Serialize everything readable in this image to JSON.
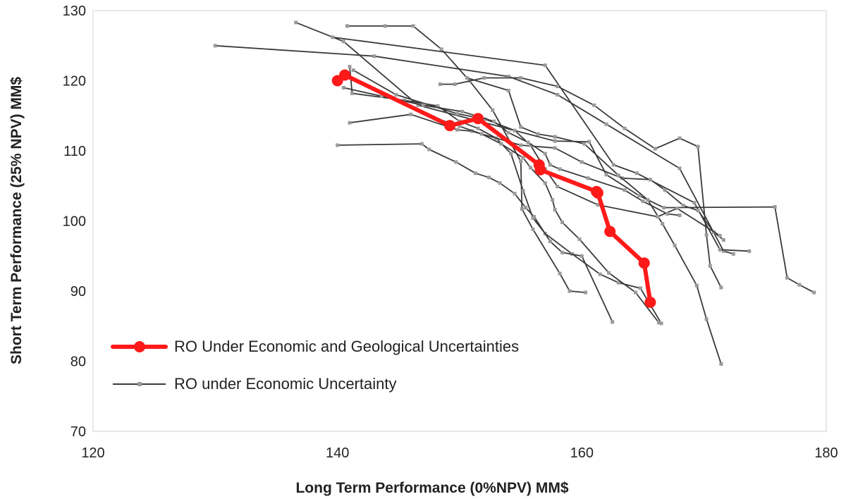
{
  "chart_data": {
    "type": "scatter",
    "title": "",
    "xlabel": "Long Term Performance (0%NPV) MM$",
    "ylabel": "Short Term Performance (25% NPV) MM$",
    "xlim": [
      120,
      180
    ],
    "ylim": [
      70,
      130
    ],
    "xticks": [
      120,
      140,
      160,
      180
    ],
    "yticks": [
      70,
      80,
      90,
      100,
      110,
      120,
      130
    ],
    "grid": false,
    "legend_position": "bottom-left",
    "series": [
      {
        "name": "RO Under Economic and Geological Uncertainties",
        "color": "#ff1a1a",
        "marker": "circle",
        "points": [
          [
            140.0,
            120.0
          ],
          [
            140.6,
            120.8
          ],
          [
            149.2,
            113.6
          ],
          [
            151.5,
            114.6
          ],
          [
            156.5,
            108.0
          ],
          [
            156.6,
            107.3
          ],
          [
            161.2,
            104.2
          ],
          [
            161.3,
            104.0
          ],
          [
            162.3,
            98.5
          ],
          [
            165.1,
            94.0
          ],
          [
            165.6,
            88.4
          ]
        ]
      },
      {
        "name": "RO under Economic Uncertainty",
        "color": "#3a3a3a",
        "marker": "square",
        "lines": [
          [
            [
              130.0,
              125.0
            ],
            [
              143.0,
              123.5
            ],
            [
              154.0,
              120.6
            ],
            [
              158.0,
              118.0
            ],
            [
              162.0,
              113.8
            ],
            [
              168.0,
              107.5
            ],
            [
              171.6,
              95.7
            ],
            [
              172.4,
              95.3
            ]
          ],
          [
            [
              136.6,
              128.3
            ],
            [
              140.5,
              125.6
            ],
            [
              146.6,
              116.5
            ],
            [
              157.8,
              111.4
            ],
            [
              160.6,
              111.3
            ],
            [
              162.0,
              106.6
            ],
            [
              164.7,
              103.6
            ],
            [
              166.7,
              101.9
            ],
            [
              175.8,
              102.0
            ],
            [
              176.8,
              91.9
            ],
            [
              177.8,
              90.9
            ],
            [
              179.0,
              89.8
            ]
          ],
          [
            [
              139.6,
              126.2
            ],
            [
              157.0,
              122.2
            ],
            [
              162.6,
              108.0
            ],
            [
              164.5,
              106.8
            ],
            [
              169.2,
              102.6
            ],
            [
              171.3,
              95.9
            ],
            [
              173.7,
              95.7
            ]
          ],
          [
            [
              140.8,
              127.8
            ],
            [
              143.9,
              127.8
            ],
            [
              146.2,
              127.8
            ],
            [
              148.5,
              124.5
            ],
            [
              150.8,
              120.0
            ],
            [
              152.7,
              115.8
            ],
            [
              155.0,
              108.5
            ],
            [
              155.1,
              101.7
            ],
            [
              156.0,
              98.8
            ],
            [
              158.2,
              92.5
            ],
            [
              159.0,
              90.0
            ],
            [
              160.3,
              89.8
            ]
          ],
          [
            [
              141.0,
              122.0
            ],
            [
              141.2,
              118.2
            ],
            [
              145.5,
              117.2
            ],
            [
              148.2,
              116.4
            ],
            [
              150.0,
              114.2
            ],
            [
              151.5,
              113.2
            ],
            [
              153.0,
              111.8
            ],
            [
              154.2,
              109.6
            ],
            [
              155.2,
              104.3
            ],
            [
              156.0,
              100.4
            ],
            [
              157.0,
              98.2
            ],
            [
              159.2,
              95.3
            ],
            [
              161.5,
              92.4
            ],
            [
              163.0,
              91.2
            ],
            [
              164.8,
              90.4
            ],
            [
              166.5,
              85.4
            ]
          ],
          [
            [
              141.0,
              114.0
            ],
            [
              146.0,
              115.2
            ],
            [
              149.8,
              113.0
            ],
            [
              151.0,
              112.8
            ],
            [
              155.0,
              110.8
            ],
            [
              157.8,
              110.4
            ],
            [
              160.0,
              108.4
            ],
            [
              163.3,
              106.1
            ],
            [
              165.6,
              105.9
            ],
            [
              166.8,
              104.4
            ],
            [
              168.3,
              102.2
            ],
            [
              169.5,
              101.5
            ],
            [
              170.8,
              98.4
            ],
            [
              171.6,
              97.3
            ]
          ],
          [
            [
              140.0,
              110.8
            ],
            [
              146.9,
              111.0
            ],
            [
              147.5,
              110.2
            ],
            [
              149.7,
              108.4
            ],
            [
              151.3,
              106.8
            ],
            [
              152.4,
              106.2
            ],
            [
              153.3,
              105.4
            ],
            [
              154.5,
              103.9
            ],
            [
              155.4,
              101.9
            ],
            [
              156.1,
              100.6
            ],
            [
              157.4,
              97.1
            ],
            [
              158.4,
              95.5
            ],
            [
              160.0,
              95.0
            ],
            [
              162.5,
              85.6
            ]
          ],
          [
            [
              150.6,
              120.4
            ],
            [
              154.0,
              118.6
            ],
            [
              155.0,
              113.4
            ],
            [
              156.4,
              112.4
            ],
            [
              157.8,
              112.0
            ],
            [
              160.2,
              111.0
            ],
            [
              163.0,
              106.5
            ],
            [
              165.4,
              103.0
            ],
            [
              166.6,
              99.6
            ],
            [
              167.6,
              96.5
            ],
            [
              169.4,
              90.8
            ],
            [
              170.2,
              86.0
            ],
            [
              171.4,
              79.6
            ]
          ],
          [
            [
              148.4,
              119.5
            ],
            [
              149.6,
              119.5
            ],
            [
              152.0,
              120.4
            ],
            [
              155.0,
              120.4
            ],
            [
              158.0,
              119.2
            ],
            [
              161.0,
              116.5
            ],
            [
              163.5,
              113.2
            ],
            [
              166.0,
              110.3
            ],
            [
              168.0,
              111.8
            ],
            [
              169.5,
              110.6
            ],
            [
              170.2,
              98.0
            ],
            [
              170.5,
              93.6
            ],
            [
              171.4,
              90.5
            ]
          ],
          [
            [
              141.3,
              121.5
            ],
            [
              144.8,
              118.0
            ],
            [
              149.8,
              115.3
            ],
            [
              152.1,
              114.5
            ],
            [
              154.5,
              112.9
            ],
            [
              155.8,
              110.8
            ],
            [
              157.0,
              107.4
            ],
            [
              158.0,
              104.9
            ],
            [
              161.3,
              102.3
            ],
            [
              166.2,
              100.6
            ],
            [
              167.8,
              101.8
            ],
            [
              171.3,
              97.9
            ]
          ],
          [
            [
              140.5,
              119.0
            ],
            [
              143.6,
              117.8
            ],
            [
              147.0,
              116.5
            ],
            [
              150.2,
              115.6
            ],
            [
              152.8,
              114.2
            ],
            [
              154.0,
              112.6
            ],
            [
              155.6,
              111.2
            ],
            [
              157.0,
              109.6
            ],
            [
              157.4,
              108.0
            ],
            [
              158.2,
              107.4
            ],
            [
              160.5,
              106.1
            ],
            [
              163.5,
              104.4
            ],
            [
              165.0,
              102.8
            ],
            [
              167.0,
              101.0
            ],
            [
              168.0,
              100.8
            ]
          ],
          [
            [
              147.8,
              114.8
            ],
            [
              150.0,
              113.5
            ],
            [
              151.8,
              112.4
            ],
            [
              153.4,
              111.0
            ],
            [
              155.2,
              109.0
            ],
            [
              155.8,
              107.6
            ],
            [
              157.0,
              105.4
            ],
            [
              157.6,
              103.0
            ],
            [
              157.8,
              101.6
            ],
            [
              158.4,
              99.8
            ],
            [
              159.8,
              97.4
            ],
            [
              162.2,
              92.6
            ],
            [
              164.4,
              89.8
            ],
            [
              166.3,
              85.5
            ]
          ]
        ]
      }
    ]
  }
}
